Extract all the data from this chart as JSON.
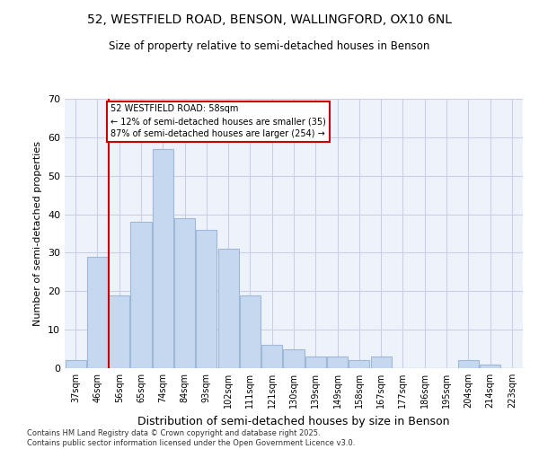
{
  "title_line1": "52, WESTFIELD ROAD, BENSON, WALLINGFORD, OX10 6NL",
  "title_line2": "Size of property relative to semi-detached houses in Benson",
  "xlabel": "Distribution of semi-detached houses by size in Benson",
  "ylabel": "Number of semi-detached properties",
  "categories": [
    "37sqm",
    "46sqm",
    "56sqm",
    "65sqm",
    "74sqm",
    "84sqm",
    "93sqm",
    "102sqm",
    "111sqm",
    "121sqm",
    "130sqm",
    "139sqm",
    "149sqm",
    "158sqm",
    "167sqm",
    "177sqm",
    "186sqm",
    "195sqm",
    "204sqm",
    "214sqm",
    "223sqm"
  ],
  "values": [
    2,
    29,
    19,
    38,
    57,
    39,
    36,
    31,
    19,
    6,
    5,
    3,
    3,
    2,
    3,
    0,
    0,
    0,
    2,
    1,
    0
  ],
  "bar_color": "#c5d8f0",
  "bar_edge_color": "#a0b8d8",
  "vline_x_index": 1.5,
  "subject_label": "52 WESTFIELD ROAD: 58sqm",
  "annotation_smaller": "← 12% of semi-detached houses are smaller (35)",
  "annotation_larger": "87% of semi-detached houses are larger (254) →",
  "annotation_box_color": "#ffffff",
  "annotation_box_edge": "#cc0000",
  "vline_color": "#cc0000",
  "ylim": [
    0,
    70
  ],
  "yticks": [
    0,
    10,
    20,
    30,
    40,
    50,
    60,
    70
  ],
  "grid_color": "#c8d0e8",
  "background_color": "#eef2fb",
  "footer_line1": "Contains HM Land Registry data © Crown copyright and database right 2025.",
  "footer_line2": "Contains public sector information licensed under the Open Government Licence v3.0."
}
